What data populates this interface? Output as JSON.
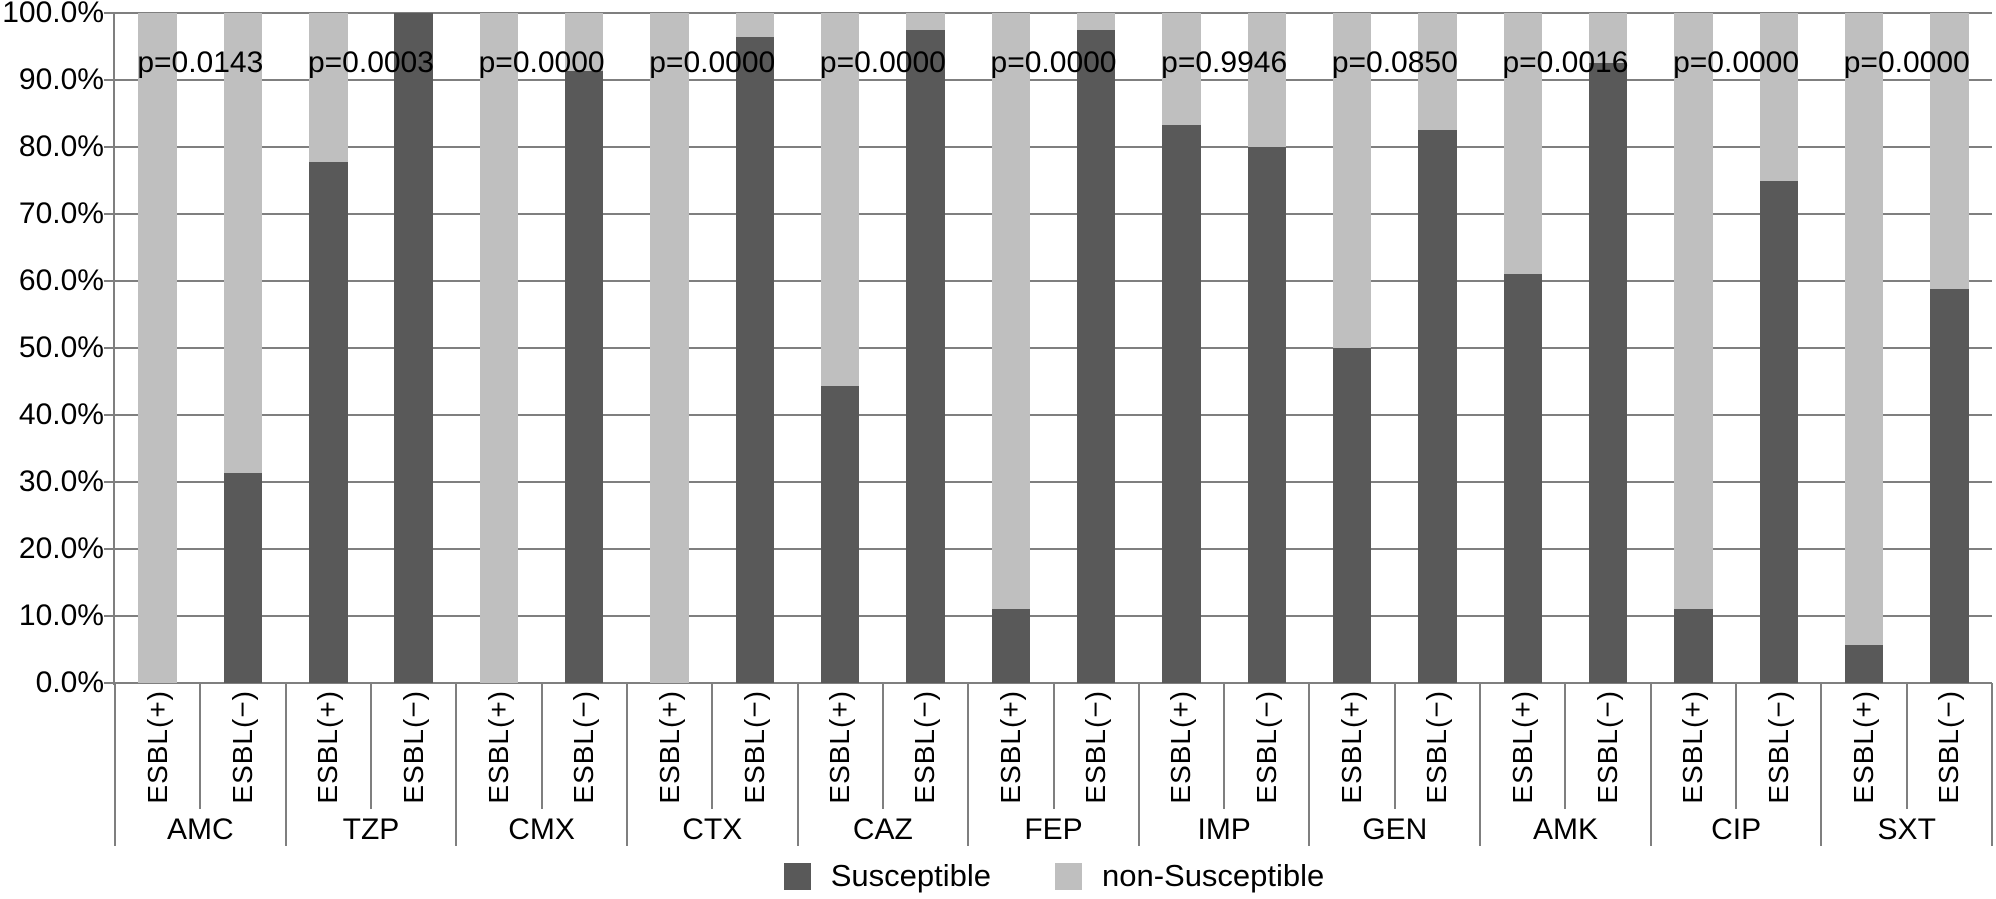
{
  "figure": {
    "background": "#ffffff",
    "description": "Stacked 100% bar chart of antimicrobial susceptibility by ESBL status with p-values per antibiotic"
  },
  "colors": {
    "susceptible": "#595959",
    "non_susceptible": "#bfbfbf",
    "gridline": "#7f7f7f",
    "text": "#000000"
  },
  "chart_data": {
    "type": "bar",
    "stacked": true,
    "unit": "percent",
    "ylim": [
      0,
      100
    ],
    "grid": true,
    "yticks": [
      "100.0%",
      "90.0%",
      "80.0%",
      "70.0%",
      "60.0%",
      "50.0%",
      "40.0%",
      "30.0%",
      "20.0%",
      "10.0%",
      "0.0%"
    ],
    "bar_sublabels": [
      "ESBL(+)",
      "ESBL(−)"
    ],
    "legend": {
      "position": "bottom",
      "entries": [
        {
          "label": "Susceptible",
          "color": "#595959"
        },
        {
          "label": "non-Susceptible",
          "color": "#bfbfbf"
        }
      ]
    },
    "groups": [
      {
        "antibiotic": "AMC",
        "p_label": "p=0.0143",
        "susceptible": [
          0.0,
          31.3
        ],
        "non_susceptible": [
          100.0,
          68.7
        ]
      },
      {
        "antibiotic": "TZP",
        "p_label": "p=0.0003",
        "susceptible": [
          77.8,
          100.0
        ],
        "non_susceptible": [
          22.2,
          0.0
        ]
      },
      {
        "antibiotic": "CMX",
        "p_label": "p=0.0000",
        "susceptible": [
          0.0,
          91.3
        ],
        "non_susceptible": [
          100.0,
          8.7
        ]
      },
      {
        "antibiotic": "CTX",
        "p_label": "p=0.0000",
        "susceptible": [
          0.0,
          96.4
        ],
        "non_susceptible": [
          100.0,
          3.6
        ]
      },
      {
        "antibiotic": "CAZ",
        "p_label": "p=0.0000",
        "susceptible": [
          44.4,
          97.5
        ],
        "non_susceptible": [
          55.6,
          2.5
        ]
      },
      {
        "antibiotic": "FEP",
        "p_label": "p=0.0000",
        "susceptible": [
          11.1,
          97.5
        ],
        "non_susceptible": [
          88.9,
          2.5
        ]
      },
      {
        "antibiotic": "IMP",
        "p_label": "p=0.9946",
        "susceptible": [
          83.3,
          80.0
        ],
        "non_susceptible": [
          16.7,
          20.0
        ]
      },
      {
        "antibiotic": "GEN",
        "p_label": "p=0.0850",
        "susceptible": [
          50.0,
          82.5
        ],
        "non_susceptible": [
          50.0,
          17.5
        ]
      },
      {
        "antibiotic": "AMK",
        "p_label": "p=0.0016",
        "susceptible": [
          61.1,
          92.5
        ],
        "non_susceptible": [
          38.9,
          7.5
        ]
      },
      {
        "antibiotic": "CIP",
        "p_label": "p=0.0000",
        "susceptible": [
          11.1,
          75.0
        ],
        "non_susceptible": [
          88.9,
          25.0
        ]
      },
      {
        "antibiotic": "SXT",
        "p_label": "p=0.0000",
        "susceptible": [
          5.6,
          58.8
        ],
        "non_susceptible": [
          94.4,
          41.2
        ]
      }
    ]
  }
}
